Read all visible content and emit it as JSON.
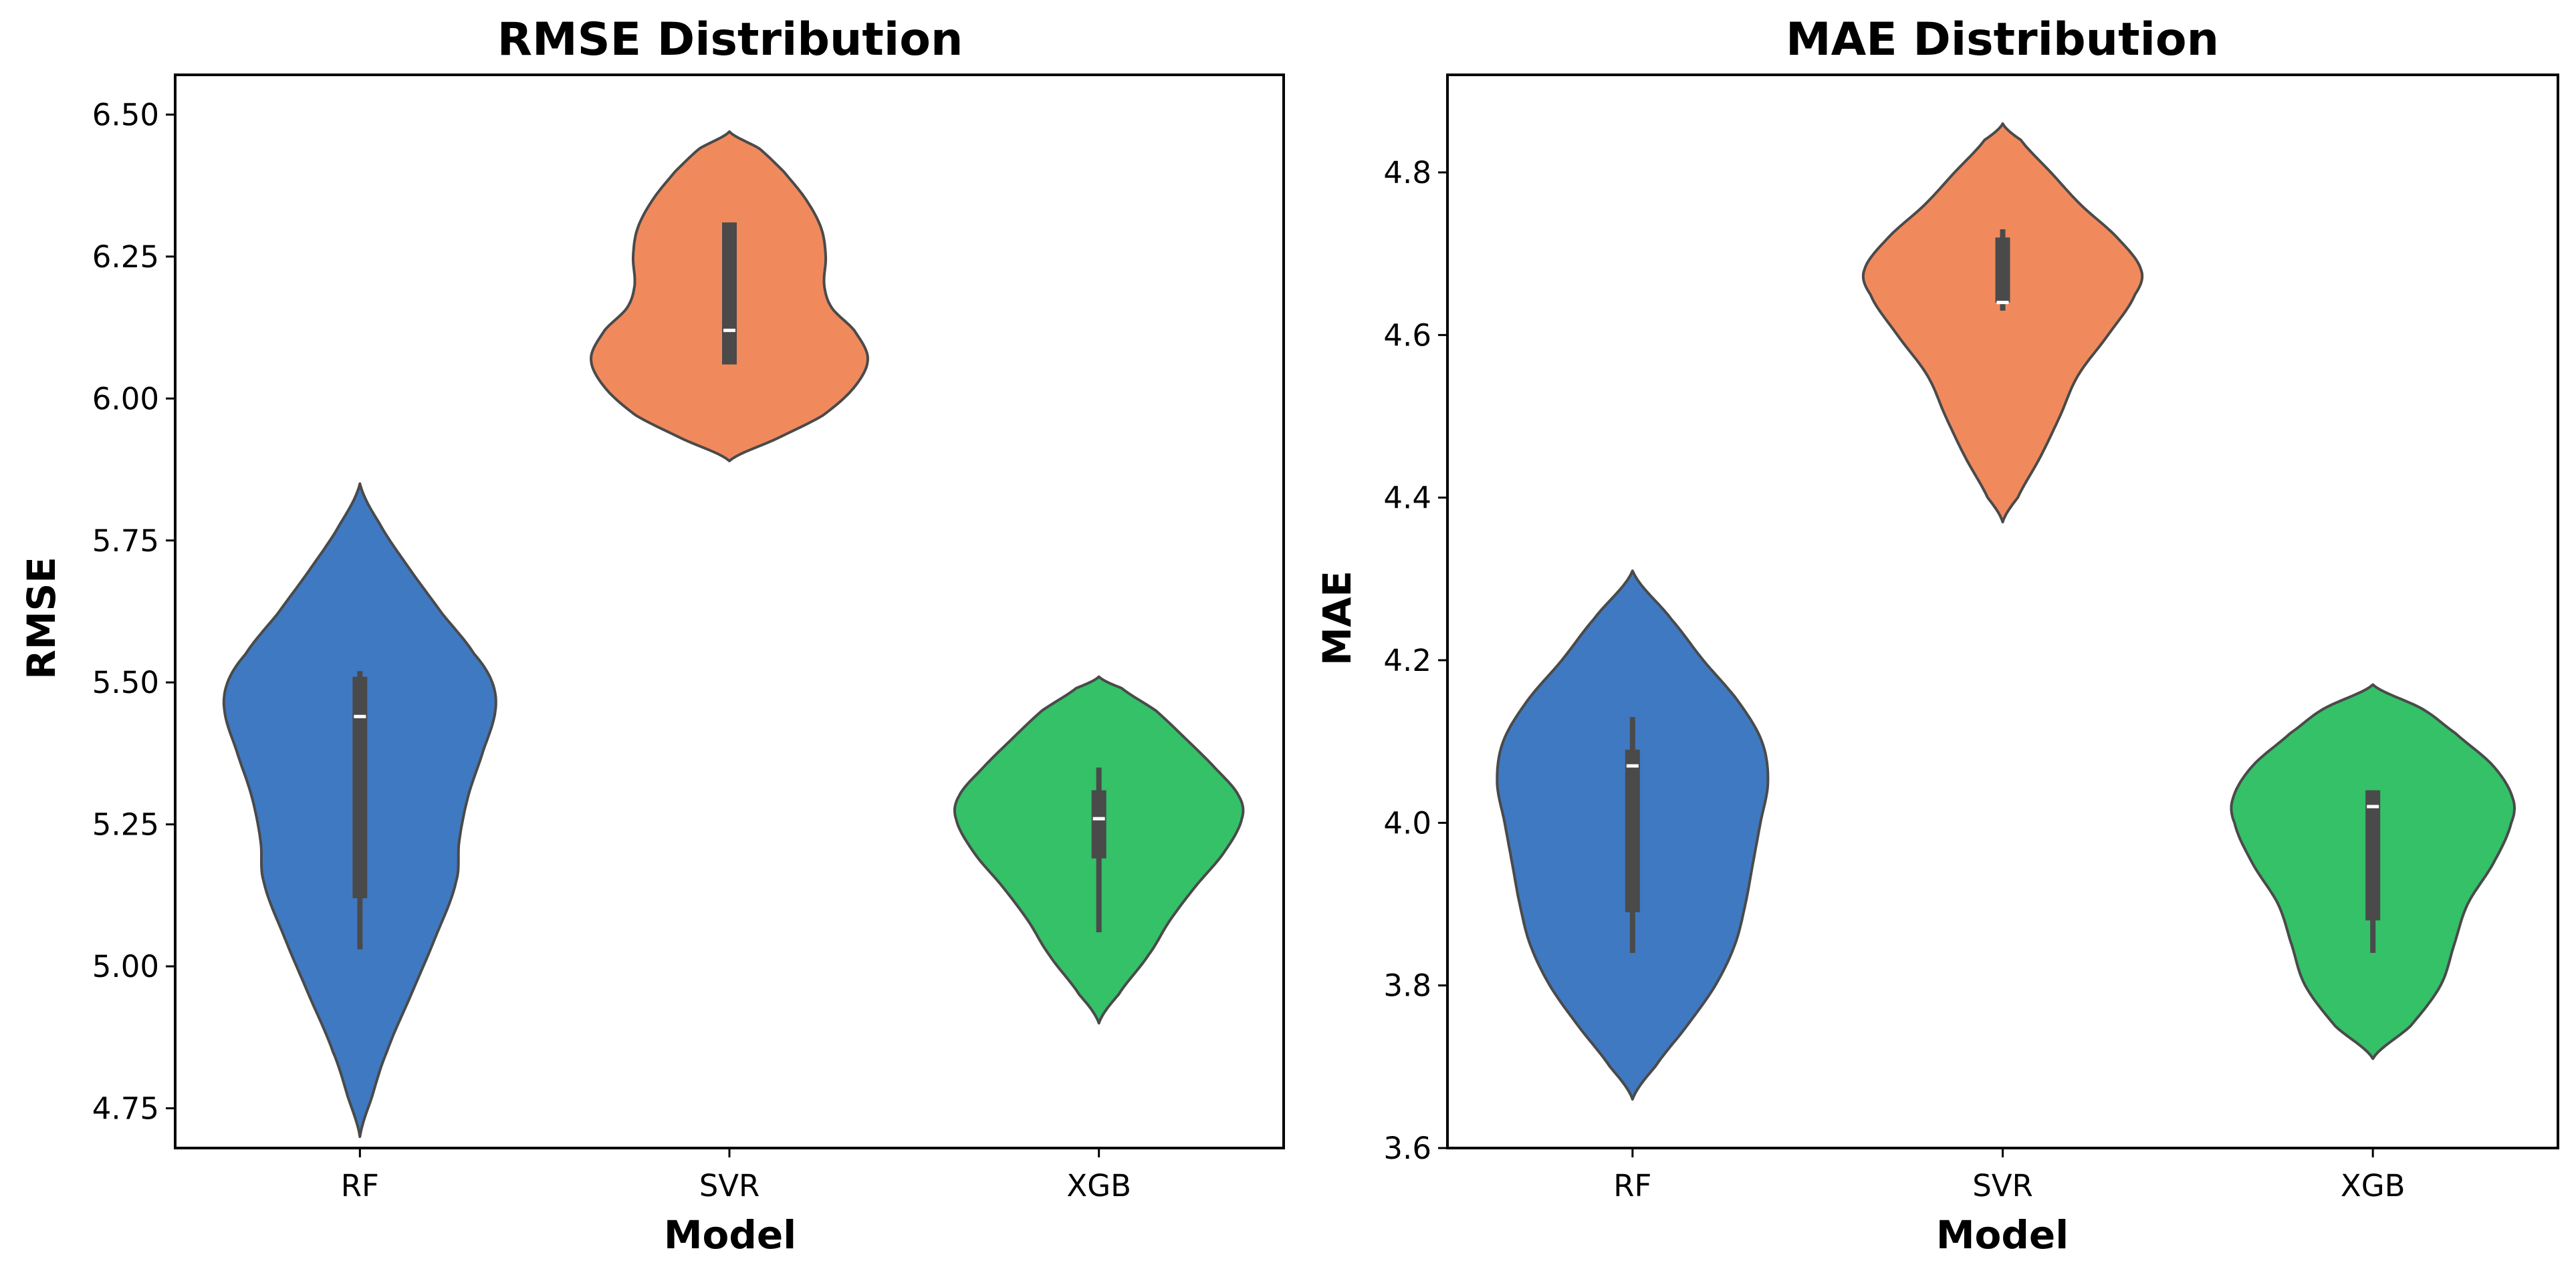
{
  "chart_data": [
    {
      "type": "violin",
      "title": "RMSE Distribution",
      "xlabel": "Model",
      "ylabel": "RMSE",
      "ylim": [
        4.68,
        6.57
      ],
      "yticks": [
        "4.75",
        "5.00",
        "5.25",
        "5.50",
        "5.75",
        "6.00",
        "6.25",
        "6.50"
      ],
      "ytick_values": [
        4.75,
        5.0,
        5.25,
        5.5,
        5.75,
        6.0,
        6.25,
        6.5
      ],
      "categories": [
        "RF",
        "SVR",
        "XGB"
      ],
      "series": [
        {
          "name": "RF",
          "color": "#3f79c2",
          "min": 4.7,
          "max": 5.85,
          "lower_whisker": 5.03,
          "q1": 5.12,
          "median": 5.44,
          "q3": 5.51,
          "upper_whisker": 5.52,
          "density": [
            [
              4.7,
              0.0
            ],
            [
              4.77,
              0.08
            ],
            [
              4.85,
              0.18
            ],
            [
              4.95,
              0.34
            ],
            [
              5.05,
              0.5
            ],
            [
              5.15,
              0.64
            ],
            [
              5.22,
              0.66
            ],
            [
              5.3,
              0.72
            ],
            [
              5.38,
              0.82
            ],
            [
              5.45,
              0.9
            ],
            [
              5.5,
              0.88
            ],
            [
              5.55,
              0.76
            ],
            [
              5.62,
              0.55
            ],
            [
              5.7,
              0.33
            ],
            [
              5.78,
              0.13
            ],
            [
              5.85,
              0.0
            ]
          ]
        },
        {
          "name": "SVR",
          "color": "#f08a5d",
          "min": 5.89,
          "max": 6.47,
          "lower_whisker": 6.06,
          "q1": 6.06,
          "median": 6.12,
          "q3": 6.31,
          "upper_whisker": 6.31,
          "density": [
            [
              5.89,
              0.0
            ],
            [
              5.93,
              0.32
            ],
            [
              5.97,
              0.62
            ],
            [
              6.02,
              0.83
            ],
            [
              6.07,
              0.92
            ],
            [
              6.12,
              0.83
            ],
            [
              6.16,
              0.68
            ],
            [
              6.2,
              0.63
            ],
            [
              6.25,
              0.64
            ],
            [
              6.3,
              0.61
            ],
            [
              6.35,
              0.51
            ],
            [
              6.4,
              0.36
            ],
            [
              6.44,
              0.2
            ],
            [
              6.47,
              0.0
            ]
          ]
        },
        {
          "name": "XGB",
          "color": "#34c168",
          "min": 4.9,
          "max": 5.51,
          "lower_whisker": 5.06,
          "q1": 5.19,
          "median": 5.26,
          "q3": 5.31,
          "upper_whisker": 5.35,
          "density": [
            [
              4.9,
              0.0
            ],
            [
              4.95,
              0.13
            ],
            [
              5.02,
              0.33
            ],
            [
              5.08,
              0.47
            ],
            [
              5.14,
              0.64
            ],
            [
              5.2,
              0.83
            ],
            [
              5.26,
              0.95
            ],
            [
              5.3,
              0.93
            ],
            [
              5.35,
              0.77
            ],
            [
              5.4,
              0.58
            ],
            [
              5.45,
              0.38
            ],
            [
              5.49,
              0.15
            ],
            [
              5.51,
              0.0
            ]
          ]
        }
      ]
    },
    {
      "type": "violin",
      "title": "MAE Distribution",
      "xlabel": "Model",
      "ylabel": "MAE",
      "ylim": [
        3.6,
        4.92
      ],
      "yticks": [
        "3.6",
        "3.8",
        "4.0",
        "4.2",
        "4.4",
        "4.6",
        "4.8"
      ],
      "ytick_values": [
        3.6,
        3.8,
        4.0,
        4.2,
        4.4,
        4.6,
        4.8
      ],
      "categories": [
        "RF",
        "SVR",
        "XGB"
      ],
      "series": [
        {
          "name": "RF",
          "color": "#3f79c2",
          "min": 3.66,
          "max": 4.31,
          "lower_whisker": 3.84,
          "q1": 3.89,
          "median": 4.07,
          "q3": 4.09,
          "upper_whisker": 4.13,
          "density": [
            [
              3.66,
              0.0
            ],
            [
              3.7,
              0.15
            ],
            [
              3.75,
              0.36
            ],
            [
              3.8,
              0.55
            ],
            [
              3.85,
              0.68
            ],
            [
              3.9,
              0.75
            ],
            [
              3.95,
              0.8
            ],
            [
              4.0,
              0.85
            ],
            [
              4.05,
              0.9
            ],
            [
              4.1,
              0.86
            ],
            [
              4.15,
              0.7
            ],
            [
              4.2,
              0.47
            ],
            [
              4.25,
              0.26
            ],
            [
              4.31,
              0.0
            ]
          ]
        },
        {
          "name": "SVR",
          "color": "#f08a5d",
          "min": 4.37,
          "max": 4.86,
          "lower_whisker": 4.63,
          "q1": 4.64,
          "median": 4.64,
          "q3": 4.72,
          "upper_whisker": 4.73,
          "density": [
            [
              4.37,
              0.0
            ],
            [
              4.4,
              0.1
            ],
            [
              4.45,
              0.25
            ],
            [
              4.5,
              0.38
            ],
            [
              4.55,
              0.5
            ],
            [
              4.6,
              0.7
            ],
            [
              4.65,
              0.88
            ],
            [
              4.68,
              0.92
            ],
            [
              4.72,
              0.76
            ],
            [
              4.76,
              0.52
            ],
            [
              4.8,
              0.32
            ],
            [
              4.84,
              0.12
            ],
            [
              4.86,
              0.0
            ]
          ]
        },
        {
          "name": "XGB",
          "color": "#34c168",
          "min": 3.71,
          "max": 4.17,
          "lower_whisker": 3.84,
          "q1": 3.88,
          "median": 4.02,
          "q3": 4.04,
          "upper_whisker": 4.04,
          "density": [
            [
              3.71,
              0.0
            ],
            [
              3.75,
              0.25
            ],
            [
              3.8,
              0.45
            ],
            [
              3.85,
              0.54
            ],
            [
              3.9,
              0.63
            ],
            [
              3.95,
              0.8
            ],
            [
              4.0,
              0.92
            ],
            [
              4.03,
              0.93
            ],
            [
              4.07,
              0.8
            ],
            [
              4.11,
              0.55
            ],
            [
              4.14,
              0.33
            ],
            [
              4.17,
              0.0
            ]
          ]
        }
      ]
    }
  ]
}
